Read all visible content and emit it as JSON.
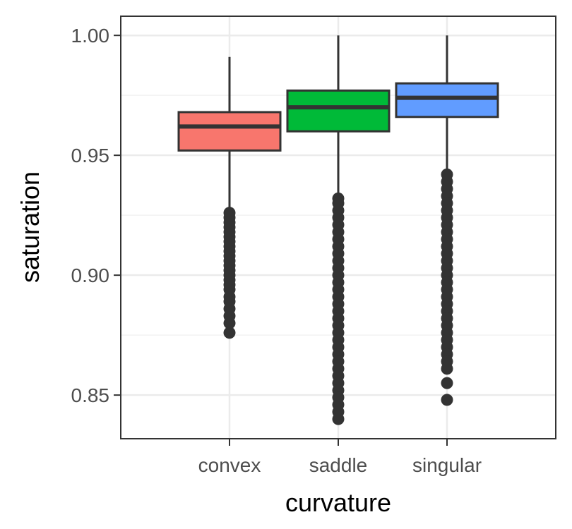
{
  "chart_data": {
    "type": "boxplot",
    "title": "",
    "xlabel": "curvature",
    "ylabel": "saturation",
    "ylim": [
      0.8318,
      1.008
    ],
    "grid": true,
    "legend": "none",
    "y_ticks": [
      0.85,
      0.9,
      0.95,
      1.0
    ],
    "y_tick_labels": [
      "0.85",
      "0.90",
      "0.95",
      "1.00"
    ],
    "categories": [
      "convex",
      "saddle",
      "singular"
    ],
    "boxes": [
      {
        "category": "convex",
        "color": "#F8766D",
        "whisker_low": 0.928,
        "q1": 0.952,
        "median": 0.962,
        "q3": 0.968,
        "whisker_high": 0.991,
        "outliers": [
          0.926,
          0.924,
          0.922,
          0.92,
          0.918,
          0.916,
          0.914,
          0.912,
          0.91,
          0.908,
          0.906,
          0.904,
          0.902,
          0.9,
          0.898,
          0.896,
          0.894,
          0.891,
          0.889,
          0.886,
          0.883,
          0.88,
          0.876
        ]
      },
      {
        "category": "saddle",
        "color": "#00BA38",
        "whisker_low": 0.933,
        "q1": 0.96,
        "median": 0.97,
        "q3": 0.977,
        "whisker_high": 1.0,
        "outliers": [
          0.932,
          0.93,
          0.927,
          0.924,
          0.921,
          0.918,
          0.915,
          0.912,
          0.909,
          0.906,
          0.903,
          0.9,
          0.897,
          0.894,
          0.891,
          0.888,
          0.885,
          0.882,
          0.879,
          0.876,
          0.873,
          0.87,
          0.867,
          0.864,
          0.861,
          0.858,
          0.855,
          0.852,
          0.849,
          0.846,
          0.843,
          0.84
        ]
      },
      {
        "category": "singular",
        "color": "#619CFF",
        "whisker_low": 0.944,
        "q1": 0.966,
        "median": 0.974,
        "q3": 0.98,
        "whisker_high": 1.0,
        "outliers": [
          0.942,
          0.939,
          0.936,
          0.933,
          0.93,
          0.927,
          0.924,
          0.921,
          0.918,
          0.915,
          0.912,
          0.909,
          0.906,
          0.903,
          0.9,
          0.897,
          0.894,
          0.891,
          0.888,
          0.885,
          0.882,
          0.879,
          0.876,
          0.873,
          0.87,
          0.867,
          0.864,
          0.861,
          0.855,
          0.848
        ]
      }
    ]
  }
}
